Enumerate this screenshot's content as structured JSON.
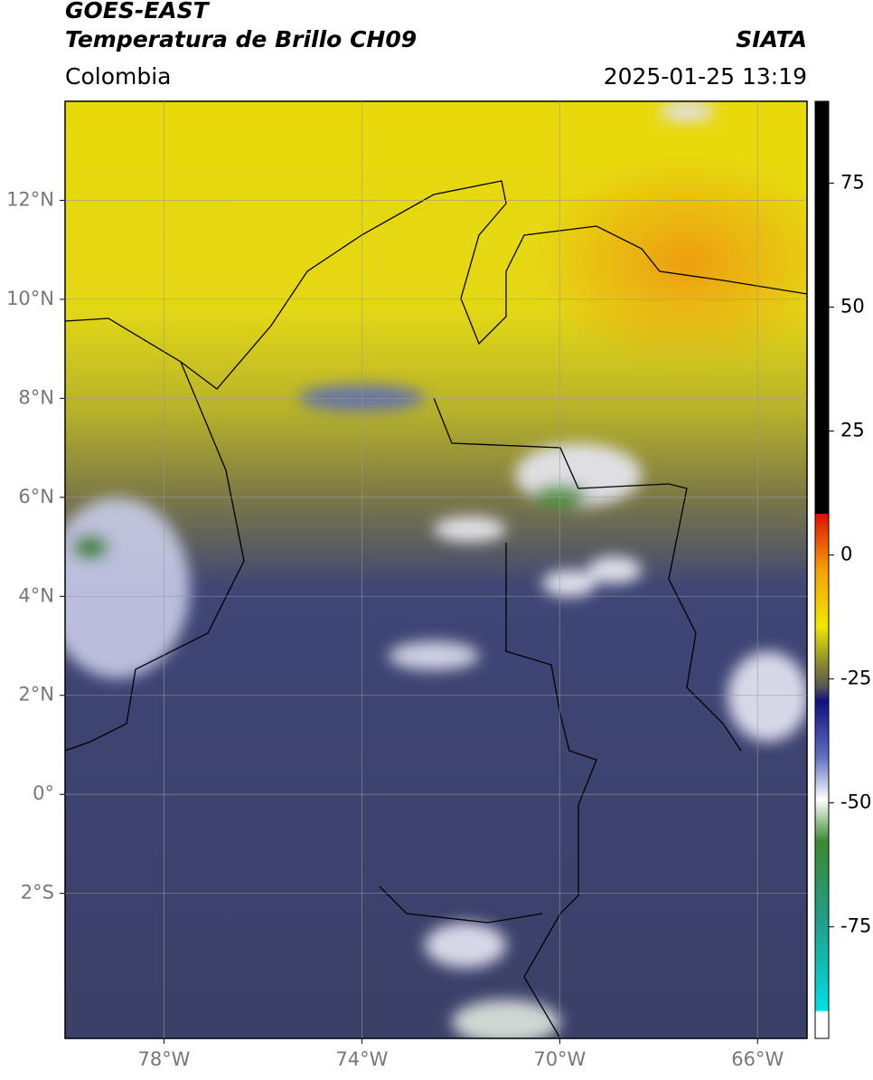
{
  "header": {
    "title": "GOES-EAST",
    "subtitle": "Temperatura de Brillo CH09",
    "region": "Colombia",
    "source": "SIATA",
    "datetime": "2025-01-25 13:19"
  },
  "map": {
    "xlim": [
      -80,
      -65
    ],
    "ylim": [
      -4.93,
      14
    ],
    "xticks": [
      {
        "value": -78,
        "label": "78°W"
      },
      {
        "value": -74,
        "label": "74°W"
      },
      {
        "value": -70,
        "label": "70°W"
      },
      {
        "value": -66,
        "label": "66°W"
      }
    ],
    "yticks": [
      {
        "value": 12,
        "label": "12°N"
      },
      {
        "value": 10,
        "label": "10°N"
      },
      {
        "value": 8,
        "label": "8°N"
      },
      {
        "value": 6,
        "label": "6°N"
      },
      {
        "value": 4,
        "label": "4°N"
      },
      {
        "value": 2,
        "label": "2°N"
      },
      {
        "value": 0,
        "label": "0°"
      },
      {
        "value": -2,
        "label": "2°S"
      }
    ],
    "grid": true
  },
  "colorbar": {
    "lim": [
      -97.5,
      91.5
    ],
    "ticks": [
      75,
      50,
      25,
      0,
      -25,
      -50,
      -75
    ]
  }
}
